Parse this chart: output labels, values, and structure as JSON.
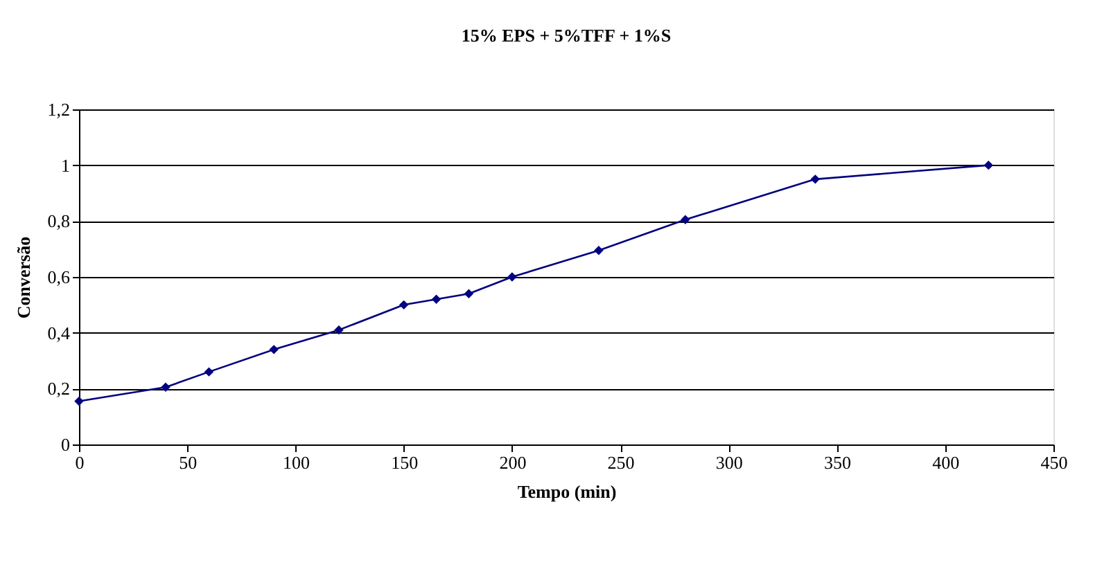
{
  "chart_data": {
    "type": "line",
    "title": "15% EPS + 5%TFF + 1%S",
    "xlabel": "Tempo (min)",
    "ylabel": "Conversão",
    "x": [
      0,
      40,
      60,
      90,
      120,
      150,
      165,
      180,
      200,
      240,
      280,
      340,
      420
    ],
    "series": [
      {
        "color": "#000080",
        "values": [
          0.155,
          0.205,
          0.26,
          0.34,
          0.41,
          0.5,
          0.52,
          0.54,
          0.6,
          0.695,
          0.805,
          0.95,
          1.0
        ]
      }
    ],
    "xlim": [
      0,
      450
    ],
    "xticks": [
      0,
      50,
      100,
      150,
      200,
      250,
      300,
      350,
      400,
      450
    ],
    "ylim": [
      0,
      1.2
    ],
    "yticks": [
      0,
      {
        "value": 0.2,
        "label": "0,2"
      },
      {
        "value": 0.4,
        "label": "0,4"
      },
      {
        "value": 0.6,
        "label": "0,6"
      },
      {
        "value": 0.8,
        "label": "0,8"
      },
      1,
      {
        "value": 1.2,
        "label": "1,2"
      }
    ],
    "grid": "y",
    "marker": "diamond",
    "line_style": "solid"
  }
}
